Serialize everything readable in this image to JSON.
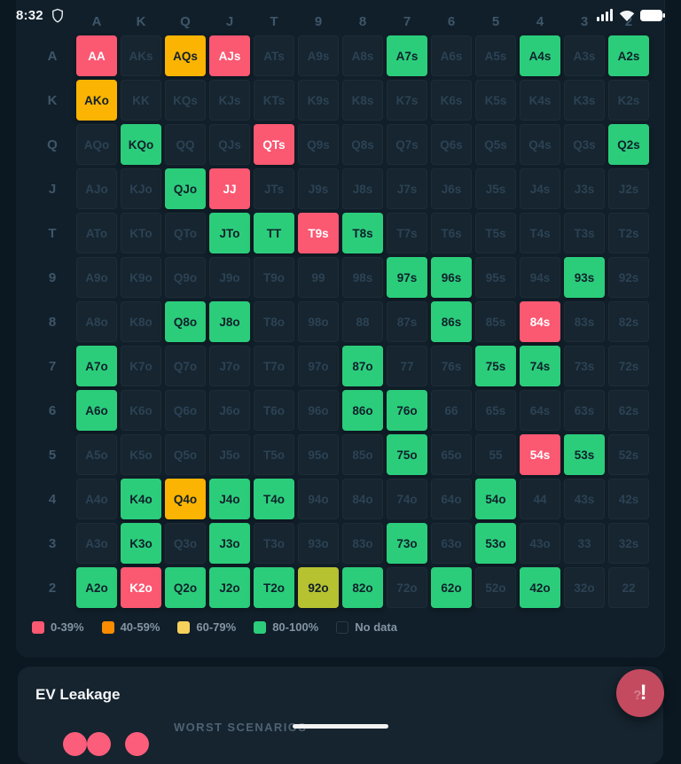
{
  "status_bar": {
    "time": "8:32",
    "icons": [
      "shield",
      "signal",
      "wifi",
      "battery"
    ]
  },
  "palette": {
    "pink": "#fb5872",
    "amber": "#fcb402",
    "chartreuse": "#b7c231",
    "green": "#2bcd7b",
    "legend_orange": "#fb8b00",
    "legend_yellow": "#f8d05c",
    "fab_red": "#c44a5f",
    "dot_pink": "#fb5d7b"
  },
  "legend": {
    "items": [
      {
        "label": "0-39%",
        "color": "#fb5872"
      },
      {
        "label": "40-59%",
        "color": "#fb8b00"
      },
      {
        "label": "60-79%",
        "color": "#f8d05c"
      },
      {
        "label": "80-100%",
        "color": "#2bcd7b"
      },
      {
        "label": "No data",
        "color": null
      }
    ]
  },
  "grid": {
    "columns": [
      "A",
      "K",
      "Q",
      "J",
      "T",
      "9",
      "8",
      "7",
      "6",
      "5",
      "4",
      "3",
      "2"
    ],
    "rows": [
      {
        "label": "A",
        "cells": [
          {
            "label": "AA",
            "color": "pink"
          },
          {
            "label": "AKs"
          },
          {
            "label": "AQs",
            "color": "amber"
          },
          {
            "label": "AJs",
            "color": "pink"
          },
          {
            "label": "ATs"
          },
          {
            "label": "A9s"
          },
          {
            "label": "A8s"
          },
          {
            "label": "A7s",
            "color": "green"
          },
          {
            "label": "A6s"
          },
          {
            "label": "A5s"
          },
          {
            "label": "A4s",
            "color": "green"
          },
          {
            "label": "A3s"
          },
          {
            "label": "A2s",
            "color": "green"
          }
        ]
      },
      {
        "label": "K",
        "cells": [
          {
            "label": "AKo",
            "color": "amber"
          },
          {
            "label": "KK"
          },
          {
            "label": "KQs"
          },
          {
            "label": "KJs"
          },
          {
            "label": "KTs"
          },
          {
            "label": "K9s"
          },
          {
            "label": "K8s"
          },
          {
            "label": "K7s"
          },
          {
            "label": "K6s"
          },
          {
            "label": "K5s"
          },
          {
            "label": "K4s"
          },
          {
            "label": "K3s"
          },
          {
            "label": "K2s"
          }
        ]
      },
      {
        "label": "Q",
        "cells": [
          {
            "label": "AQo"
          },
          {
            "label": "KQo",
            "color": "green"
          },
          {
            "label": "QQ"
          },
          {
            "label": "QJs"
          },
          {
            "label": "QTs",
            "color": "pink"
          },
          {
            "label": "Q9s"
          },
          {
            "label": "Q8s"
          },
          {
            "label": "Q7s"
          },
          {
            "label": "Q6s"
          },
          {
            "label": "Q5s"
          },
          {
            "label": "Q4s"
          },
          {
            "label": "Q3s"
          },
          {
            "label": "Q2s",
            "color": "green"
          }
        ]
      },
      {
        "label": "J",
        "cells": [
          {
            "label": "AJo"
          },
          {
            "label": "KJo"
          },
          {
            "label": "QJo",
            "color": "green"
          },
          {
            "label": "JJ",
            "color": "pink"
          },
          {
            "label": "JTs"
          },
          {
            "label": "J9s"
          },
          {
            "label": "J8s"
          },
          {
            "label": "J7s"
          },
          {
            "label": "J6s"
          },
          {
            "label": "J5s"
          },
          {
            "label": "J4s"
          },
          {
            "label": "J3s"
          },
          {
            "label": "J2s"
          }
        ]
      },
      {
        "label": "T",
        "cells": [
          {
            "label": "ATo"
          },
          {
            "label": "KTo"
          },
          {
            "label": "QTo"
          },
          {
            "label": "JTo",
            "color": "green"
          },
          {
            "label": "TT",
            "color": "green"
          },
          {
            "label": "T9s",
            "color": "pink"
          },
          {
            "label": "T8s",
            "color": "green"
          },
          {
            "label": "T7s"
          },
          {
            "label": "T6s"
          },
          {
            "label": "T5s"
          },
          {
            "label": "T4s"
          },
          {
            "label": "T3s"
          },
          {
            "label": "T2s"
          }
        ]
      },
      {
        "label": "9",
        "cells": [
          {
            "label": "A9o"
          },
          {
            "label": "K9o"
          },
          {
            "label": "Q9o"
          },
          {
            "label": "J9o"
          },
          {
            "label": "T9o"
          },
          {
            "label": "99"
          },
          {
            "label": "98s"
          },
          {
            "label": "97s",
            "color": "green"
          },
          {
            "label": "96s",
            "color": "green"
          },
          {
            "label": "95s"
          },
          {
            "label": "94s"
          },
          {
            "label": "93s",
            "color": "green"
          },
          {
            "label": "92s"
          }
        ]
      },
      {
        "label": "8",
        "cells": [
          {
            "label": "A8o"
          },
          {
            "label": "K8o"
          },
          {
            "label": "Q8o",
            "color": "green"
          },
          {
            "label": "J8o",
            "color": "green"
          },
          {
            "label": "T8o"
          },
          {
            "label": "98o"
          },
          {
            "label": "88"
          },
          {
            "label": "87s"
          },
          {
            "label": "86s",
            "color": "green"
          },
          {
            "label": "85s"
          },
          {
            "label": "84s",
            "color": "pink"
          },
          {
            "label": "83s"
          },
          {
            "label": "82s"
          }
        ]
      },
      {
        "label": "7",
        "cells": [
          {
            "label": "A7o",
            "color": "green"
          },
          {
            "label": "K7o"
          },
          {
            "label": "Q7o"
          },
          {
            "label": "J7o"
          },
          {
            "label": "T7o"
          },
          {
            "label": "97o"
          },
          {
            "label": "87o",
            "color": "green"
          },
          {
            "label": "77"
          },
          {
            "label": "76s"
          },
          {
            "label": "75s",
            "color": "green"
          },
          {
            "label": "74s",
            "color": "green"
          },
          {
            "label": "73s"
          },
          {
            "label": "72s"
          }
        ]
      },
      {
        "label": "6",
        "cells": [
          {
            "label": "A6o",
            "color": "green"
          },
          {
            "label": "K6o"
          },
          {
            "label": "Q6o"
          },
          {
            "label": "J6o"
          },
          {
            "label": "T6o"
          },
          {
            "label": "96o"
          },
          {
            "label": "86o",
            "color": "green"
          },
          {
            "label": "76o",
            "color": "green"
          },
          {
            "label": "66"
          },
          {
            "label": "65s"
          },
          {
            "label": "64s"
          },
          {
            "label": "63s"
          },
          {
            "label": "62s"
          }
        ]
      },
      {
        "label": "5",
        "cells": [
          {
            "label": "A5o"
          },
          {
            "label": "K5o"
          },
          {
            "label": "Q5o"
          },
          {
            "label": "J5o"
          },
          {
            "label": "T5o"
          },
          {
            "label": "95o"
          },
          {
            "label": "85o"
          },
          {
            "label": "75o",
            "color": "green"
          },
          {
            "label": "65o"
          },
          {
            "label": "55"
          },
          {
            "label": "54s",
            "color": "pink"
          },
          {
            "label": "53s",
            "color": "green"
          },
          {
            "label": "52s"
          }
        ]
      },
      {
        "label": "4",
        "cells": [
          {
            "label": "A4o"
          },
          {
            "label": "K4o",
            "color": "green"
          },
          {
            "label": "Q4o",
            "color": "amber"
          },
          {
            "label": "J4o",
            "color": "green"
          },
          {
            "label": "T4o",
            "color": "green"
          },
          {
            "label": "94o"
          },
          {
            "label": "84o"
          },
          {
            "label": "74o"
          },
          {
            "label": "64o"
          },
          {
            "label": "54o",
            "color": "green"
          },
          {
            "label": "44"
          },
          {
            "label": "43s"
          },
          {
            "label": "42s"
          }
        ]
      },
      {
        "label": "3",
        "cells": [
          {
            "label": "A3o"
          },
          {
            "label": "K3o",
            "color": "green"
          },
          {
            "label": "Q3o"
          },
          {
            "label": "J3o",
            "color": "green"
          },
          {
            "label": "T3o"
          },
          {
            "label": "93o"
          },
          {
            "label": "83o"
          },
          {
            "label": "73o",
            "color": "green"
          },
          {
            "label": "63o"
          },
          {
            "label": "53o",
            "color": "green"
          },
          {
            "label": "43o"
          },
          {
            "label": "33"
          },
          {
            "label": "32s"
          }
        ]
      },
      {
        "label": "2",
        "cells": [
          {
            "label": "A2o",
            "color": "green"
          },
          {
            "label": "K2o",
            "color": "pink"
          },
          {
            "label": "Q2o",
            "color": "green"
          },
          {
            "label": "J2o",
            "color": "green"
          },
          {
            "label": "T2o",
            "color": "green"
          },
          {
            "label": "92o",
            "color": "chartreuse"
          },
          {
            "label": "82o",
            "color": "green"
          },
          {
            "label": "72o"
          },
          {
            "label": "62o",
            "color": "green"
          },
          {
            "label": "52o"
          },
          {
            "label": "42o",
            "color": "green"
          },
          {
            "label": "32o"
          },
          {
            "label": "22"
          }
        ]
      }
    ]
  },
  "ev_section": {
    "title": "EV Leakage",
    "subtitle": "WORST SCENARIOS",
    "scenario_dots": 3
  }
}
